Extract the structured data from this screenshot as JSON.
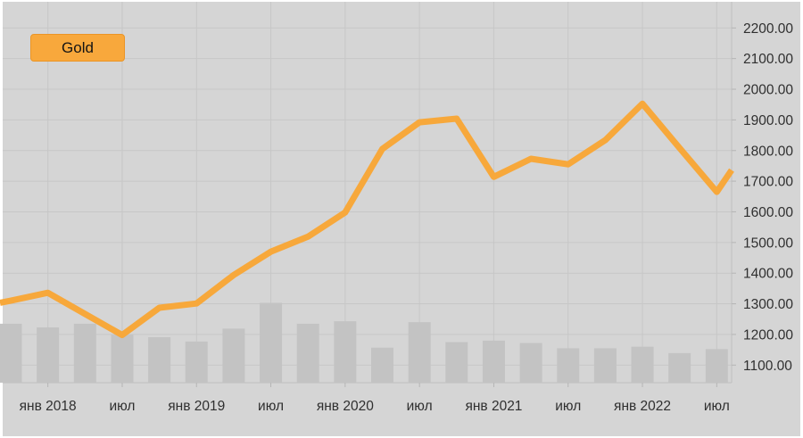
{
  "legend": {
    "label": "Gold"
  },
  "colors": {
    "frame_border": "#ffffff",
    "background": "#d5d5d5",
    "gridline": "#c7c7c7",
    "axis_line": "#bfbfbf",
    "tick": "#b5b5b5",
    "bar": "#c3c3c3",
    "line": "#f7a83b",
    "legend_fill": "#f8a83c",
    "legend_border": "#eb9526",
    "text": "#2f2f2f"
  },
  "chart_data": {
    "type": "line",
    "title": "",
    "xlabel": "",
    "ylabel": "",
    "grid": true,
    "legend_position": "top-left",
    "x_quarters": [
      "окт 2017",
      "янв 2018",
      "апр 2018",
      "июл 2018",
      "окт 2018",
      "янв 2019",
      "апр 2019",
      "июл 2019",
      "окт 2019",
      "янв 2020",
      "апр 2020",
      "июл 2020",
      "окт 2020",
      "янв 2021",
      "апр 2021",
      "июл 2021",
      "окт 2021",
      "янв 2022",
      "апр 2022",
      "июл 2022"
    ],
    "series": [
      {
        "name": "Gold",
        "type": "line",
        "values": [
          1310,
          1336,
          1267,
          1198,
          1287,
          1301,
          1394,
          1470,
          1519,
          1598,
          1805,
          1892,
          1904,
          1714,
          1773,
          1755,
          1834,
          1953,
          1808,
          1665
        ]
      },
      {
        "name": "Volume",
        "type": "bar",
        "values": [
          1235,
          1223,
          1235,
          1199,
          1191,
          1177,
          1219,
          1303,
          1235,
          1243,
          1157,
          1240,
          1175,
          1180,
          1172,
          1155,
          1155,
          1160,
          1139,
          1152
        ]
      }
    ],
    "line_edge_extension": {
      "start_value": 1303,
      "end_value": 1736
    },
    "x_axis_tick_labels": [
      "янв 2018",
      "июл",
      "янв 2019",
      "июл",
      "янв 2020",
      "июл",
      "янв 2021",
      "июл",
      "янв 2022",
      "июл"
    ],
    "y_axis_tick_labels": [
      "2200.00",
      "2100.00",
      "2000.00",
      "1900.00",
      "1800.00",
      "1700.00",
      "1600.00",
      "1500.00",
      "1400.00",
      "1300.00",
      "1200.00",
      "1100.00"
    ],
    "y_axis_range_labeled": [
      1100,
      2200
    ],
    "y_step": 100,
    "ylim_plot": [
      1042.6,
      2285.3
    ]
  }
}
